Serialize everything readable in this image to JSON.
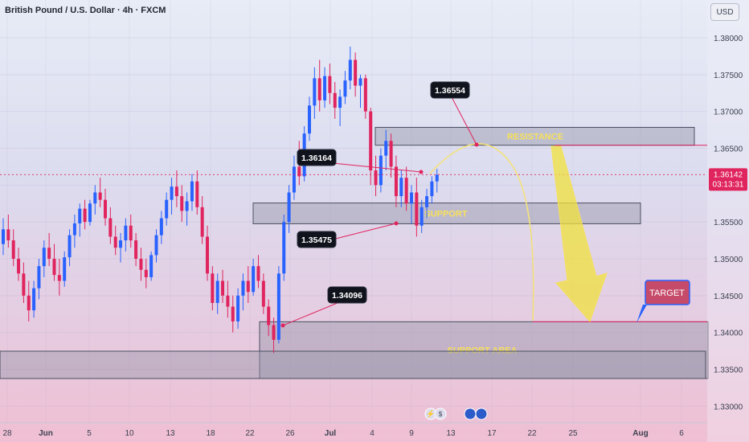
{
  "header": {
    "title": "British Pound / U.S. Dollar · 4h · FXCM",
    "currency": "USD"
  },
  "price_tag": {
    "price": "1.36142",
    "countdown": "03:13:31"
  },
  "zones": {
    "resistance": "RESISTANCE",
    "support": "SUPPORT",
    "support_area": "SUPPORT AREA",
    "target": "TARGET"
  },
  "callouts": [
    "1.36554",
    "1.36164",
    "1.35475",
    "1.34096"
  ],
  "chart_data": {
    "type": "candlestick",
    "title": "British Pound / U.S. Dollar · 4h · FXCM",
    "ylim": [
      1.3275,
      1.3825
    ],
    "y_ticks": [
      "1.38000",
      "1.37500",
      "1.37000",
      "1.36500",
      "1.36000",
      "1.35500",
      "1.35000",
      "1.34500",
      "1.34000",
      "1.33500",
      "1.33000"
    ],
    "x_ticks": [
      "28",
      "Jun",
      "5",
      "10",
      "13",
      "18",
      "22",
      "26",
      "Jul",
      "4",
      "9",
      "13",
      "17",
      "22",
      "25",
      "Aug",
      "6"
    ],
    "last_price": 1.36142,
    "series": [
      {
        "values": [
          [
            1.352,
            1.3555,
            1.3505,
            1.354
          ],
          [
            1.354,
            1.356,
            1.3515,
            1.3525
          ],
          [
            1.3525,
            1.354,
            1.349,
            1.35
          ],
          [
            1.35,
            1.3515,
            1.347,
            1.348
          ],
          [
            1.348,
            1.3495,
            1.344,
            1.345
          ],
          [
            1.345,
            1.347,
            1.3415,
            1.343
          ],
          [
            1.343,
            1.347,
            1.342,
            1.346
          ],
          [
            1.346,
            1.35,
            1.3445,
            1.349
          ],
          [
            1.349,
            1.3525,
            1.3475,
            1.3515
          ],
          [
            1.3515,
            1.3535,
            1.349,
            1.35
          ],
          [
            1.35,
            1.352,
            1.347,
            1.3478
          ],
          [
            1.3478,
            1.35,
            1.345,
            1.347
          ],
          [
            1.347,
            1.351,
            1.3462,
            1.3502
          ],
          [
            1.3502,
            1.354,
            1.349,
            1.3532
          ],
          [
            1.3532,
            1.356,
            1.3515,
            1.3548
          ],
          [
            1.3548,
            1.3575,
            1.353,
            1.3568
          ],
          [
            1.3568,
            1.358,
            1.354,
            1.355
          ],
          [
            1.355,
            1.358,
            1.3545,
            1.3575
          ],
          [
            1.3575,
            1.36,
            1.356,
            1.359
          ],
          [
            1.359,
            1.361,
            1.357,
            1.358
          ],
          [
            1.358,
            1.3595,
            1.3545,
            1.3555
          ],
          [
            1.3555,
            1.357,
            1.352,
            1.353
          ],
          [
            1.353,
            1.3545,
            1.3505,
            1.3515
          ],
          [
            1.3515,
            1.3535,
            1.3495,
            1.3525
          ],
          [
            1.3525,
            1.3555,
            1.351,
            1.3545
          ],
          [
            1.3545,
            1.356,
            1.3515,
            1.3525
          ],
          [
            1.3525,
            1.3535,
            1.349,
            1.35
          ],
          [
            1.35,
            1.3515,
            1.347,
            1.3485
          ],
          [
            1.3485,
            1.35,
            1.346,
            1.3475
          ],
          [
            1.3475,
            1.351,
            1.347,
            1.3505
          ],
          [
            1.3505,
            1.354,
            1.3495,
            1.3532
          ],
          [
            1.3532,
            1.3565,
            1.352,
            1.3555
          ],
          [
            1.3555,
            1.359,
            1.3545,
            1.358
          ],
          [
            1.358,
            1.361,
            1.356,
            1.3598
          ],
          [
            1.3598,
            1.362,
            1.357,
            1.3585
          ],
          [
            1.3585,
            1.36,
            1.355,
            1.3565
          ],
          [
            1.3565,
            1.359,
            1.3545,
            1.3578
          ],
          [
            1.3578,
            1.3615,
            1.3565,
            1.3605
          ],
          [
            1.3605,
            1.362,
            1.356,
            1.357
          ],
          [
            1.357,
            1.3585,
            1.352,
            1.353
          ],
          [
            1.353,
            1.3545,
            1.347,
            1.348
          ],
          [
            1.348,
            1.349,
            1.343,
            1.344
          ],
          [
            1.344,
            1.348,
            1.3425,
            1.347
          ],
          [
            1.347,
            1.3485,
            1.344,
            1.345
          ],
          [
            1.345,
            1.347,
            1.342,
            1.3435
          ],
          [
            1.3435,
            1.345,
            1.34,
            1.3415
          ],
          [
            1.3415,
            1.346,
            1.3405,
            1.345
          ],
          [
            1.345,
            1.348,
            1.343,
            1.347
          ],
          [
            1.347,
            1.349,
            1.344,
            1.3455
          ],
          [
            1.3455,
            1.35,
            1.345,
            1.349
          ],
          [
            1.349,
            1.3505,
            1.346,
            1.347
          ],
          [
            1.347,
            1.348,
            1.3425,
            1.3435
          ],
          [
            1.3435,
            1.3445,
            1.3395,
            1.341
          ],
          [
            1.341,
            1.342,
            1.3372,
            1.339
          ],
          [
            1.339,
            1.349,
            1.3385,
            1.348
          ],
          [
            1.348,
            1.356,
            1.347,
            1.355
          ],
          [
            1.355,
            1.36,
            1.3535,
            1.359
          ],
          [
            1.359,
            1.364,
            1.358,
            1.3625
          ],
          [
            1.3625,
            1.366,
            1.36,
            1.3612
          ],
          [
            1.3612,
            1.368,
            1.3605,
            1.367
          ],
          [
            1.367,
            1.372,
            1.366,
            1.3708
          ],
          [
            1.3708,
            1.376,
            1.369,
            1.3745
          ],
          [
            1.3745,
            1.377,
            1.37,
            1.3715
          ],
          [
            1.3715,
            1.376,
            1.3705,
            1.3748
          ],
          [
            1.3748,
            1.3765,
            1.371,
            1.3725
          ],
          [
            1.3725,
            1.374,
            1.369,
            1.3705
          ],
          [
            1.3705,
            1.373,
            1.368,
            1.372
          ],
          [
            1.372,
            1.3755,
            1.371,
            1.3742
          ],
          [
            1.3742,
            1.3788,
            1.373,
            1.377
          ],
          [
            1.377,
            1.378,
            1.372,
            1.3735
          ],
          [
            1.3735,
            1.375,
            1.3705,
            1.3745
          ],
          [
            1.3745,
            1.375,
            1.369,
            1.37
          ],
          [
            1.37,
            1.3705,
            1.36,
            1.362
          ],
          [
            1.362,
            1.364,
            1.3585,
            1.36
          ],
          [
            1.36,
            1.365,
            1.359,
            1.364
          ],
          [
            1.364,
            1.3675,
            1.362,
            1.366
          ],
          [
            1.366,
            1.367,
            1.361,
            1.3625
          ],
          [
            1.3625,
            1.364,
            1.357,
            1.3585
          ],
          [
            1.3585,
            1.362,
            1.357,
            1.361
          ],
          [
            1.361,
            1.3625,
            1.3565,
            1.3575
          ],
          [
            1.3575,
            1.36,
            1.3548,
            1.359
          ],
          [
            1.359,
            1.361,
            1.353,
            1.3545
          ],
          [
            1.3545,
            1.358,
            1.3535,
            1.357
          ],
          [
            1.357,
            1.3595,
            1.3555,
            1.3585
          ],
          [
            1.3585,
            1.3612,
            1.3575,
            1.3605
          ],
          [
            1.3605,
            1.3622,
            1.359,
            1.3614
          ]
        ]
      }
    ],
    "annotations": [
      {
        "label": "RESISTANCE",
        "y_range": [
          1.36541,
          1.36784
        ]
      },
      {
        "label": "SUPPORT",
        "y_range": [
          1.35475,
          1.35757
        ]
      },
      {
        "label": "SUPPORT AREA",
        "y_range": [
          1.33375,
          1.34145
        ]
      },
      {
        "label": "1.36554",
        "value": 1.36554
      },
      {
        "label": "1.36164",
        "value": 1.36164
      },
      {
        "label": "1.35475",
        "value": 1.35475
      },
      {
        "label": "1.34096",
        "value": 1.34096
      },
      {
        "label": "TARGET",
        "value": 1.34145
      }
    ]
  }
}
